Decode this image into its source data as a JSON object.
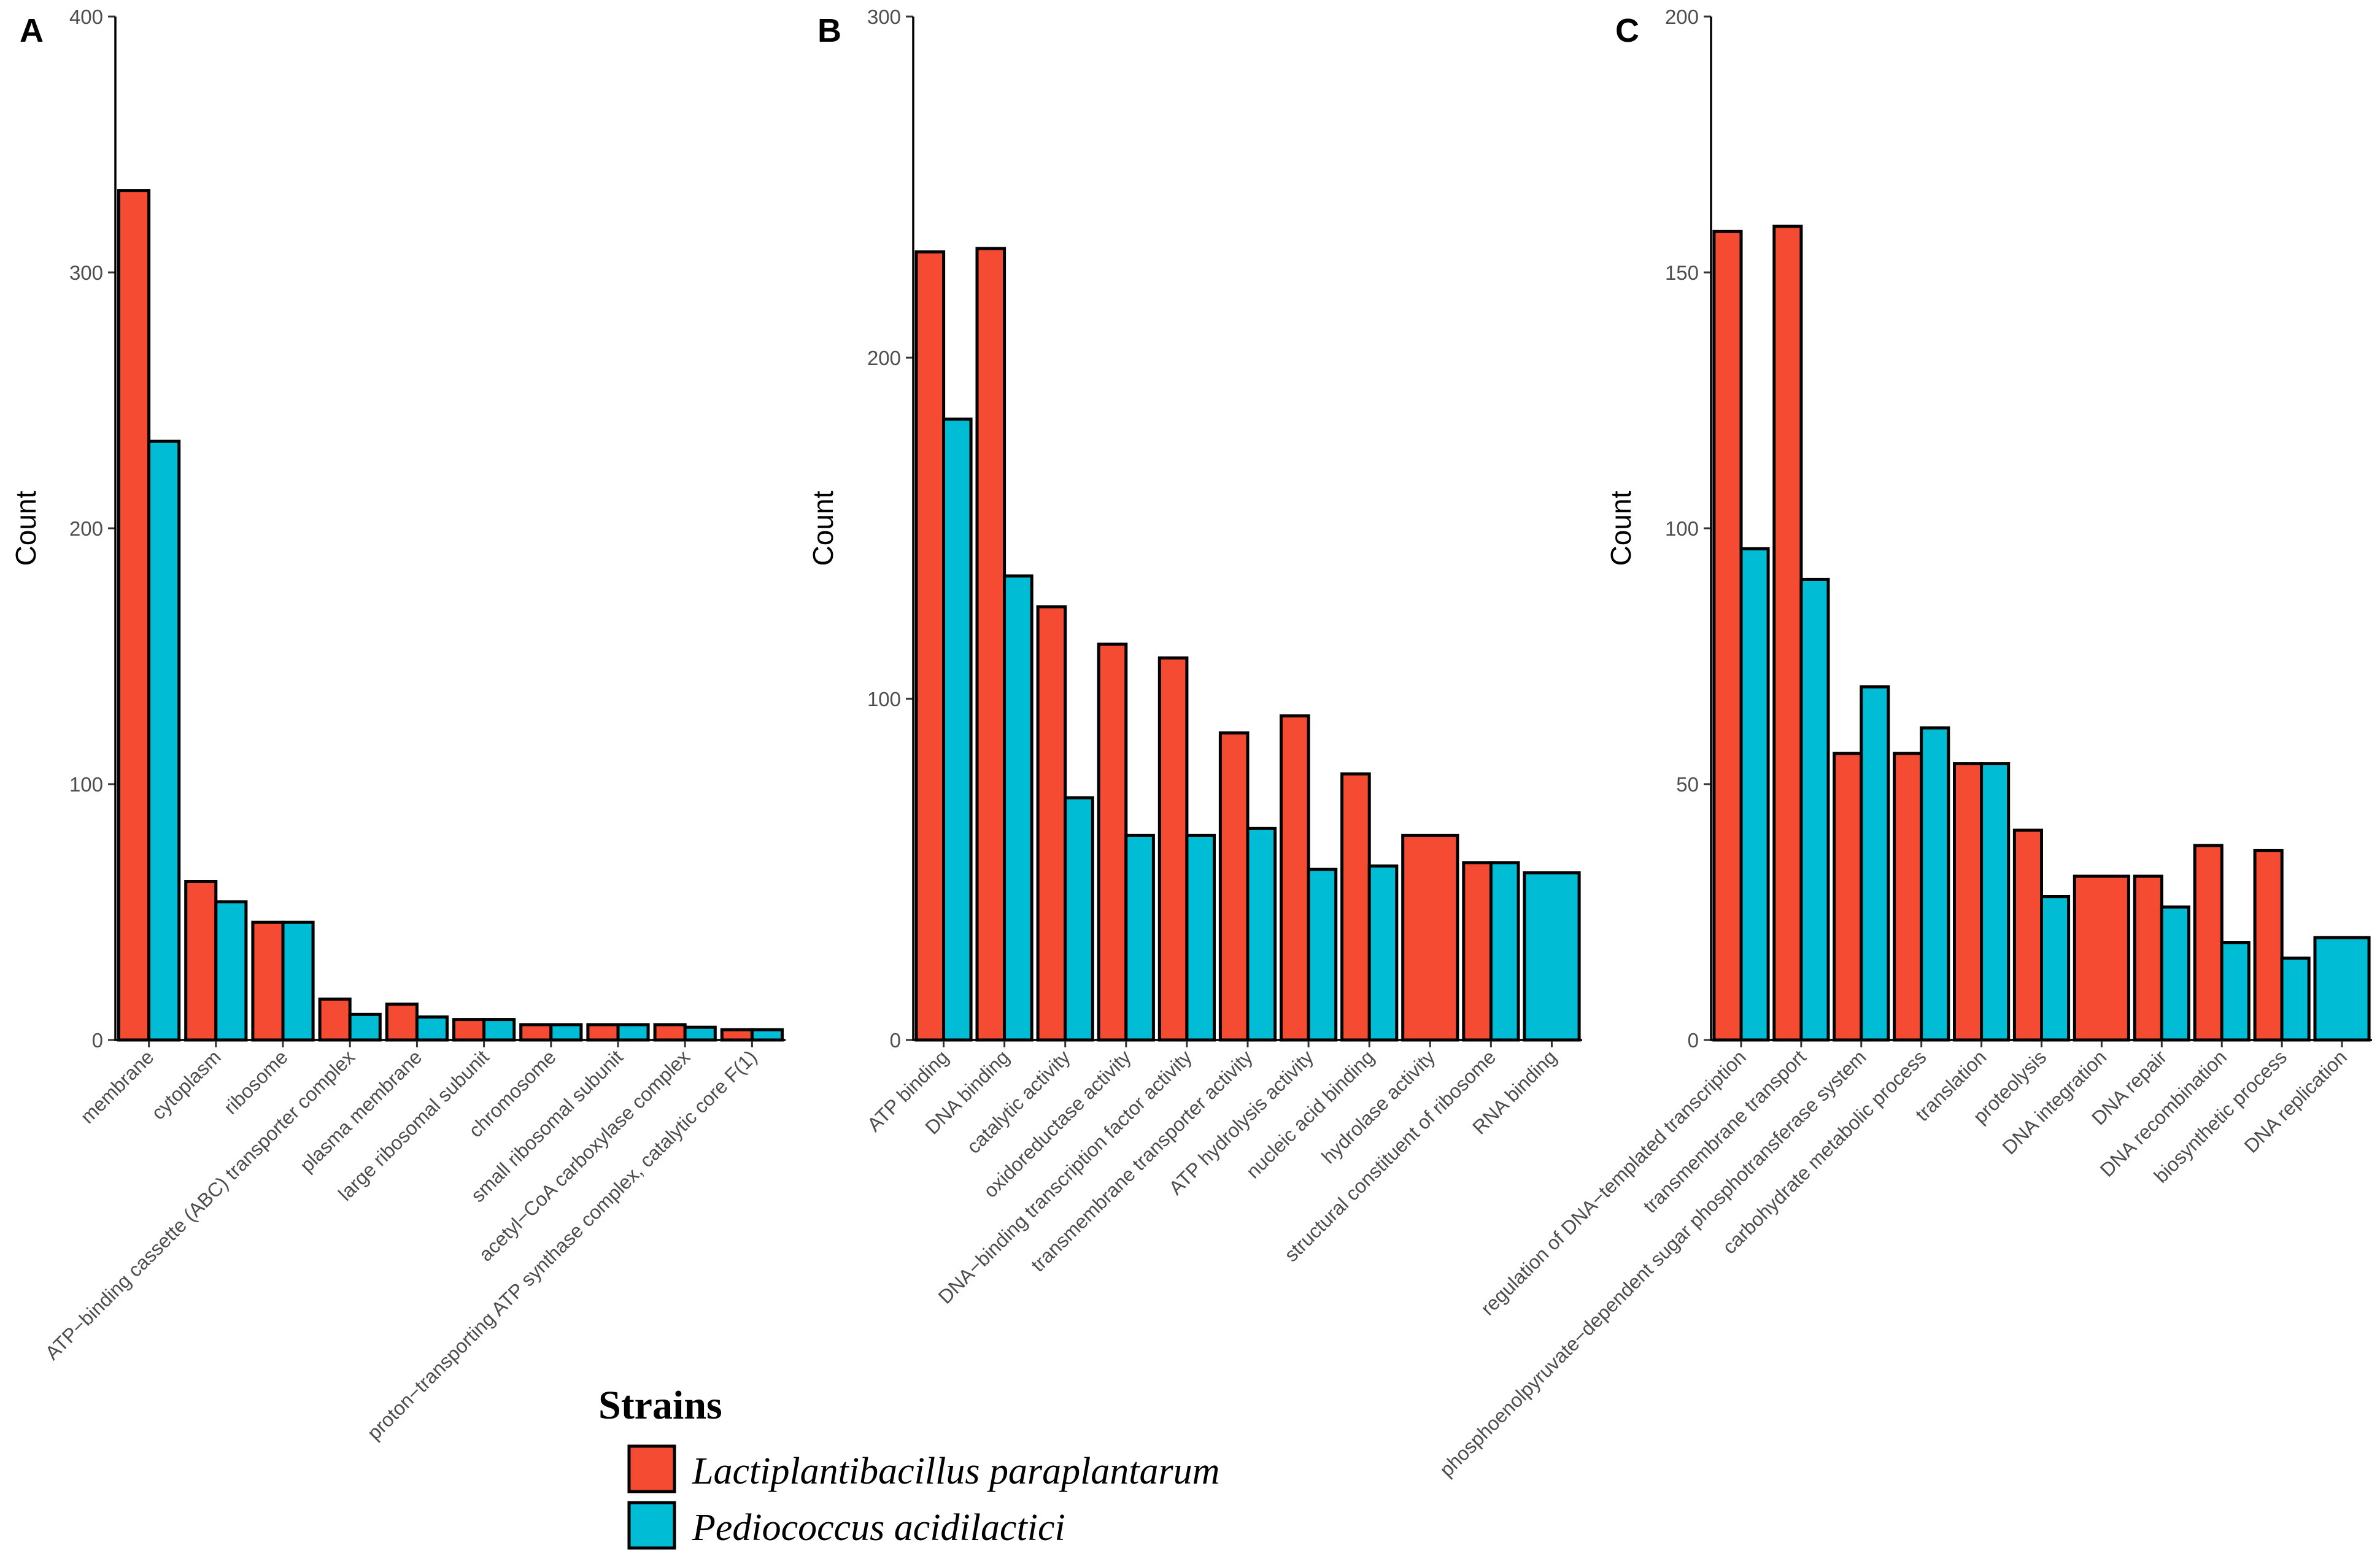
{
  "colors": {
    "red": "#F44B32",
    "teal": "#00BCD4"
  },
  "legend": {
    "title": "Strains",
    "items": [
      {
        "label": "Lactiplantibacillus paraplantarum",
        "color": "#F44B32"
      },
      {
        "label": "Pediococcus acidilactici",
        "color": "#00BCD4"
      }
    ]
  },
  "chart_data": [
    {
      "type": "bar",
      "panel": "A",
      "ylabel": "Count",
      "ylim": [
        0,
        400
      ],
      "yticks": [
        0,
        100,
        200,
        300,
        400
      ],
      "categories": [
        "membrane",
        "cytoplasm",
        "ribosome",
        "ATP−binding cassette (ABC) transporter complex",
        "plasma membrane",
        "large ribosomal subunit",
        "chromosome",
        "small ribosomal subunit",
        "acetyl−CoA carboxylase complex",
        "proton−transporting ATP synthase complex, catalytic core F(1)"
      ],
      "series": [
        {
          "name": "Lactiplantibacillus paraplantarum",
          "values": [
            332,
            62,
            46,
            16,
            14,
            8,
            6,
            6,
            6,
            4
          ]
        },
        {
          "name": "Pediococcus acidilactici",
          "values": [
            234,
            54,
            46,
            10,
            9,
            8,
            6,
            6,
            5,
            4
          ]
        }
      ]
    },
    {
      "type": "bar",
      "panel": "B",
      "ylabel": "Count",
      "ylim": [
        0,
        300
      ],
      "yticks": [
        0,
        100,
        200,
        300
      ],
      "categories": [
        "ATP binding",
        "DNA binding",
        "catalytic activity",
        "oxidoreductase activity",
        "DNA−binding transcription factor activity",
        "transmembrane transporter activity",
        "ATP hydrolysis activity",
        "nucleic acid binding",
        "hydrolase activity",
        "structural constituent of ribosome",
        "RNA binding"
      ],
      "series": [
        {
          "name": "Lactiplantibacillus paraplantarum",
          "values": [
            231,
            232,
            127,
            116,
            112,
            90,
            95,
            78,
            60,
            52,
            null
          ]
        },
        {
          "name": "Pediococcus acidilactici",
          "values": [
            182,
            136,
            71,
            60,
            60,
            62,
            50,
            51,
            null,
            52,
            49
          ]
        }
      ]
    },
    {
      "type": "bar",
      "panel": "C",
      "ylabel": "Count",
      "ylim": [
        0,
        200
      ],
      "yticks": [
        0,
        50,
        100,
        150,
        200
      ],
      "categories": [
        "regulation of DNA−templated transcription",
        "transmembrane transport",
        "phosphoenolpyruvate−dependent sugar phosphotransferase system",
        "carbohydrate metabolic process",
        "translation",
        "proteolysis",
        "DNA integration",
        "DNA repair",
        "DNA recombination",
        "biosynthetic process",
        "DNA replication"
      ],
      "series": [
        {
          "name": "Lactiplantibacillus paraplantarum",
          "values": [
            158,
            159,
            56,
            56,
            54,
            41,
            32,
            32,
            38,
            37,
            null
          ]
        },
        {
          "name": "Pediococcus acidilactici",
          "values": [
            96,
            90,
            69,
            61,
            54,
            28,
            null,
            26,
            19,
            16,
            20
          ]
        }
      ]
    }
  ]
}
